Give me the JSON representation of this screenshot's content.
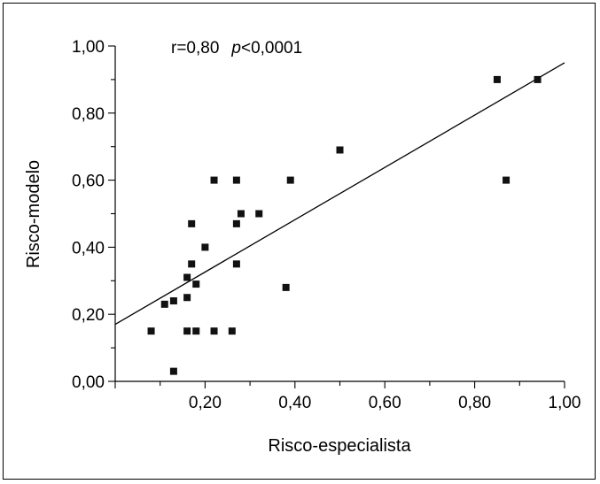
{
  "chart_data": {
    "type": "scatter",
    "xlabel": "Risco-especialista",
    "ylabel": "Risco-modelo",
    "xlim": [
      0,
      1
    ],
    "ylim": [
      0,
      1
    ],
    "x_ticks": [
      "0,20",
      "0,40",
      "0,60",
      "0,80",
      "1,00"
    ],
    "y_ticks": [
      "0,00",
      "0,20",
      "0,40",
      "0,60",
      "0,80",
      "1,00"
    ],
    "annotation": {
      "r_text": "r=0,80",
      "p_text": "p",
      "p_value": "<0,0001"
    },
    "regression_line": {
      "x": [
        0,
        1
      ],
      "y": [
        0.17,
        0.95
      ]
    },
    "points": [
      {
        "x": 0.08,
        "y": 0.15
      },
      {
        "x": 0.11,
        "y": 0.23
      },
      {
        "x": 0.13,
        "y": 0.24
      },
      {
        "x": 0.13,
        "y": 0.03
      },
      {
        "x": 0.16,
        "y": 0.31
      },
      {
        "x": 0.16,
        "y": 0.25
      },
      {
        "x": 0.16,
        "y": 0.15
      },
      {
        "x": 0.17,
        "y": 0.47
      },
      {
        "x": 0.17,
        "y": 0.35
      },
      {
        "x": 0.18,
        "y": 0.29
      },
      {
        "x": 0.18,
        "y": 0.15
      },
      {
        "x": 0.2,
        "y": 0.4
      },
      {
        "x": 0.22,
        "y": 0.6
      },
      {
        "x": 0.22,
        "y": 0.15
      },
      {
        "x": 0.26,
        "y": 0.15
      },
      {
        "x": 0.27,
        "y": 0.47
      },
      {
        "x": 0.27,
        "y": 0.6
      },
      {
        "x": 0.27,
        "y": 0.35
      },
      {
        "x": 0.28,
        "y": 0.5
      },
      {
        "x": 0.32,
        "y": 0.5
      },
      {
        "x": 0.38,
        "y": 0.28
      },
      {
        "x": 0.39,
        "y": 0.6
      },
      {
        "x": 0.5,
        "y": 0.69
      },
      {
        "x": 0.85,
        "y": 0.9
      },
      {
        "x": 0.87,
        "y": 0.6
      },
      {
        "x": 0.94,
        "y": 0.9
      }
    ]
  }
}
